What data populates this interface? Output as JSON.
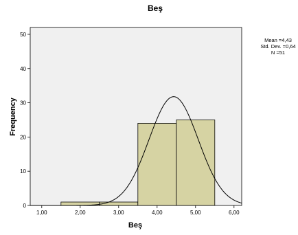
{
  "chart_data": {
    "type": "bar",
    "title": "Beş",
    "xlabel": "Beş",
    "ylabel": "Frequency",
    "xlim": [
      0.7,
      6.2
    ],
    "ylim": [
      0,
      52
    ],
    "x_ticks": [
      1,
      2,
      3,
      4,
      5,
      6
    ],
    "x_tick_labels": [
      "1,00",
      "2,00",
      "3,00",
      "4,00",
      "5,00",
      "6,00"
    ],
    "y_ticks": [
      0,
      10,
      20,
      30,
      40,
      50
    ],
    "y_tick_labels": [
      "0",
      "10",
      "20",
      "30",
      "40",
      "50"
    ],
    "bins": [
      {
        "start": 1.5,
        "end": 2.5,
        "count": 1
      },
      {
        "start": 2.5,
        "end": 3.5,
        "count": 1
      },
      {
        "start": 3.5,
        "end": 4.5,
        "count": 24
      },
      {
        "start": 4.5,
        "end": 5.5,
        "count": 25
      }
    ],
    "normal_curve": {
      "mean": 4.43,
      "std_dev": 0.64,
      "n": 51,
      "bin_width": 1
    },
    "bar_color": "#d6d3a3",
    "plot_background": "#f0f0f0",
    "grid": false,
    "stats_lines": [
      "Mean =4,43",
      "Std. Dev. =0,64",
      "N =51"
    ],
    "stats_placement": "top-right"
  }
}
